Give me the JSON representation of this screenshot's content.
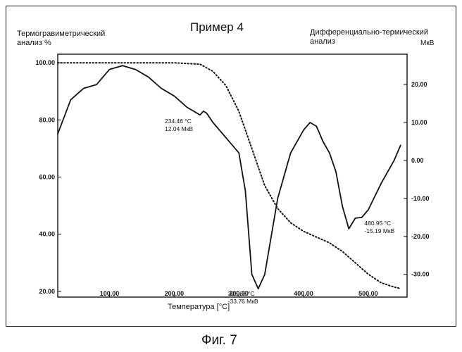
{
  "figure_caption": "Фиг. 7",
  "chart_data": {
    "type": "line",
    "title": "Пример 4",
    "left_axis_title": "Термогравиметрический\nанализ %",
    "right_axis_title": "Дифференциально-термический\nанализ",
    "right_axis_unit": "МкВ",
    "xlabel": "Температура [°С]",
    "x_ticks": [
      "100.00",
      "200.00",
      "300.00",
      "400.00",
      "500.00"
    ],
    "x_tick_values": [
      100,
      200,
      300,
      400,
      500
    ],
    "xlim": [
      20,
      560
    ],
    "y_left_ticks": [
      "100.00",
      "80.00",
      "60.00",
      "40.00",
      "20.00"
    ],
    "y_left_tick_values": [
      100,
      80,
      60,
      40,
      20
    ],
    "ylim_left": [
      18,
      103
    ],
    "y_right_ticks": [
      "20.00",
      "10.00",
      "0.00",
      "-10.00",
      "-20.00",
      "-30.00"
    ],
    "y_right_tick_values": [
      20,
      10,
      0,
      -10,
      -20,
      -30
    ],
    "ylim_right": [
      -36,
      28
    ],
    "series": [
      {
        "axis": "left",
        "style": "dotted",
        "x": [
          20,
          100,
          200,
          240,
          260,
          280,
          300,
          320,
          340,
          360,
          380,
          400,
          420,
          440,
          460,
          480,
          500,
          520,
          540,
          550
        ],
        "y": [
          100,
          100,
          100,
          99.5,
          97,
          92,
          83,
          70,
          57,
          49,
          44,
          41,
          39,
          37,
          34,
          30,
          26,
          23,
          21.5,
          21
        ]
      },
      {
        "axis": "right",
        "style": "solid",
        "x": [
          20,
          40,
          60,
          80,
          100,
          120,
          140,
          160,
          180,
          200,
          220,
          240,
          245,
          250,
          260,
          280,
          300,
          310,
          320,
          330,
          340,
          350,
          360,
          380,
          400,
          410,
          420,
          430,
          440,
          450,
          460,
          470,
          480,
          490,
          500,
          520,
          540,
          550
        ],
        "y": [
          7,
          16,
          19,
          20,
          24,
          25,
          24,
          22,
          19,
          17,
          14,
          12,
          13,
          12.5,
          10,
          6,
          2,
          -8,
          -30,
          -33.8,
          -30,
          -20,
          -10,
          2,
          8,
          10,
          9,
          5,
          2,
          -3,
          -12,
          -18,
          -15.2,
          -15,
          -13,
          -6,
          0,
          4
        ]
      }
    ],
    "annotations": [
      {
        "lines": [
          "234.46 °C",
          "12.04  МкВ"
        ],
        "x": 234.46,
        "y": 12.04,
        "axis": "right"
      },
      {
        "lines": [
          "326.66 °C",
          "-33.76  МкВ"
        ],
        "x": 326.66,
        "y": -33.76,
        "axis": "right"
      },
      {
        "lines": [
          "480.95 °C",
          "-15.19  МкВ"
        ],
        "x": 480.95,
        "y": -15.19,
        "axis": "right"
      }
    ]
  }
}
